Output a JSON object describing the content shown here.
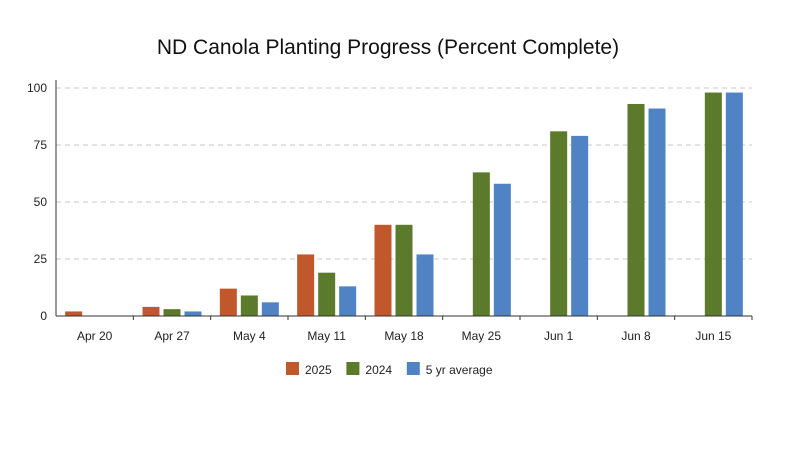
{
  "chart_data": {
    "type": "bar",
    "title": "ND Canola Planting Progress (Percent Complete)",
    "xlabel": "",
    "ylabel": "",
    "ylim": [
      0,
      100
    ],
    "yticks": [
      0,
      25,
      50,
      75,
      100
    ],
    "grid": true,
    "legend": "bottom",
    "categories": [
      "Apr 20",
      "Apr 27",
      "May 4",
      "May 11",
      "May 18",
      "May 25",
      "Jun 1",
      "Jun 8",
      "Jun 15"
    ],
    "series": [
      {
        "name": "2025",
        "color": "#c0582b",
        "values": [
          2,
          4,
          12,
          27,
          40,
          null,
          null,
          null,
          null
        ]
      },
      {
        "name": "2024",
        "color": "#5b7a2c",
        "values": [
          0,
          3,
          9,
          19,
          40,
          63,
          81,
          93,
          98
        ]
      },
      {
        "name": "5 yr average",
        "color": "#4f83c3",
        "values": [
          0,
          2,
          6,
          13,
          27,
          58,
          79,
          91,
          98
        ]
      }
    ]
  }
}
